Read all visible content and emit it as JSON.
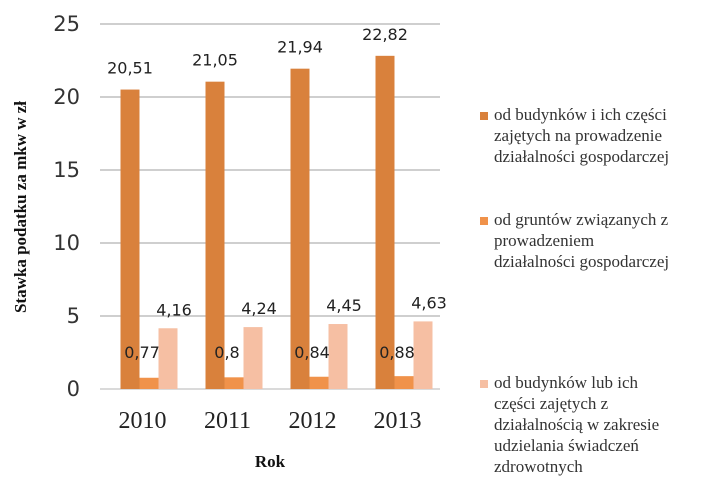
{
  "chart_data": {
    "type": "bar",
    "title": "",
    "xlabel": "Rok",
    "ylabel": "Stawka podatku za mkw w zł",
    "ylim": [
      0,
      25
    ],
    "yticks": [
      0,
      5,
      10,
      15,
      20,
      25
    ],
    "grid": true,
    "legend_position": "right",
    "categories": [
      "2010",
      "2011",
      "2012",
      "2013"
    ],
    "series": [
      {
        "name": "od budynków i ich części zajętych na prowadzenie działalności gospodarczej",
        "color": "#D9813C",
        "values": [
          20.51,
          21.05,
          21.94,
          22.82
        ],
        "labels": [
          "20,51",
          "21,05",
          "21,94",
          "22,82"
        ]
      },
      {
        "name": "od gruntów związanych z prowadzeniem działalności gospodarczej",
        "color": "#F0924A",
        "values": [
          0.77,
          0.8,
          0.84,
          0.88
        ],
        "labels": [
          "0,77",
          "0,8",
          "0,84",
          "0,88"
        ]
      },
      {
        "name": "od budynków lub ich części zajętych z działalnością w zakresie udzielania świadczeń zdrowotnych",
        "color": "#F6BFA3",
        "values": [
          4.16,
          4.24,
          4.45,
          4.63
        ],
        "labels": [
          "4,16",
          "4,24",
          "4,45",
          "4,63"
        ]
      }
    ],
    "legend_lines": [
      [
        "od budynków  i ich części",
        "zajętych na prowadzenie",
        "działalności gospodarczej"
      ],
      [
        "od gruntów  związanych  z",
        "prowadzeniem",
        "działalności gospodarczej"
      ],
      [
        "od budynków  lub ich",
        "części zajętych z",
        "działalnością  w zakresie",
        "udzielania  świadczeń",
        "zdrowotnych"
      ]
    ]
  }
}
